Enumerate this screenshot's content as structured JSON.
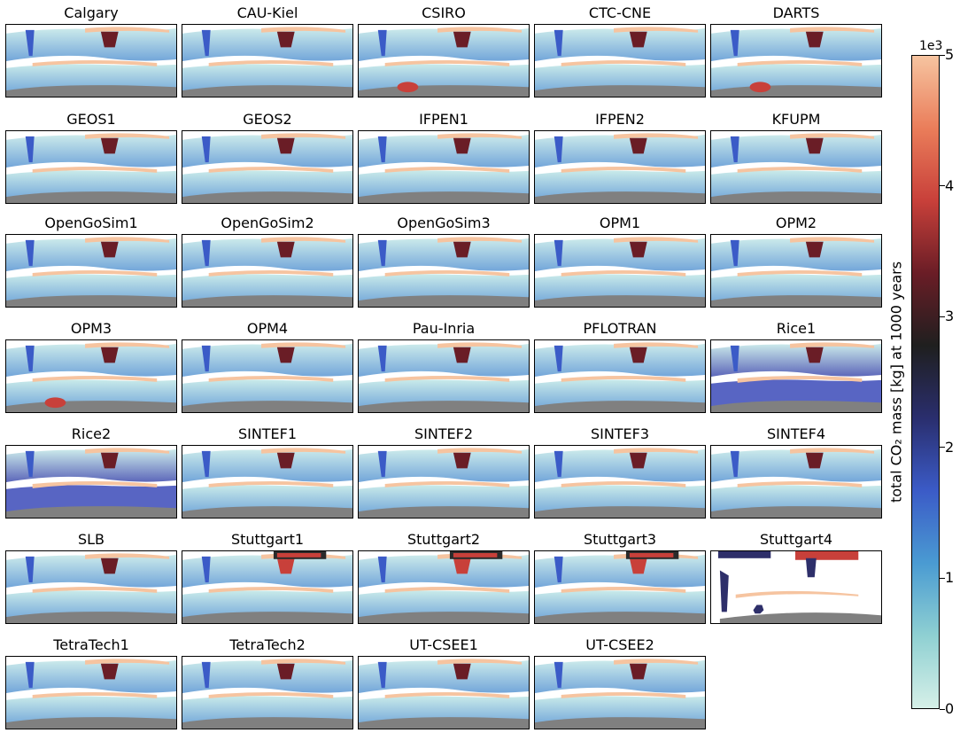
{
  "chart_data": {
    "type": "heatmap",
    "panels": [
      "Calgary",
      "CAU-Kiel",
      "CSIRO",
      "CTC-CNE",
      "DARTS",
      "GEOS1",
      "GEOS2",
      "IFPEN1",
      "IFPEN2",
      "KFUPM",
      "OpenGoSim1",
      "OpenGoSim2",
      "OpenGoSim3",
      "OPM1",
      "OPM2",
      "OPM3",
      "OPM4",
      "Pau-Inria",
      "PFLOTRAN",
      "Rice1",
      "Rice2",
      "SINTEF1",
      "SINTEF2",
      "SINTEF3",
      "SINTEF4",
      "SLB",
      "Stuttgart1",
      "Stuttgart2",
      "Stuttgart3",
      "Stuttgart4",
      "TetraTech1",
      "TetraTech2",
      "UT-CSEE1",
      "UT-CSEE2"
    ],
    "grid": {
      "columns": 5,
      "rows": 7
    },
    "colorbar": {
      "label": "total CO₂ mass [kg] at 1000 years",
      "scale_text": "1e3",
      "ticks": [
        "0",
        "1",
        "2",
        "3",
        "4",
        "5"
      ],
      "tick_values": [
        0,
        1,
        2,
        3,
        4,
        5
      ],
      "range": [
        0,
        5
      ],
      "colors": [
        "#d6f0e8",
        "#8fd0d2",
        "#4a9bd2",
        "#3b5bc7",
        "#2a2e6e",
        "#1f1f1f",
        "#6a1d26",
        "#c8403a",
        "#ea7d5a",
        "#f6c4a0"
      ]
    },
    "variants": {
      "Rice1": "dense",
      "Rice2": "dense",
      "Stuttgart4": "sparse",
      "CSIRO": "darkbottom",
      "DARTS": "darkbottom",
      "OPM3": "darkbottom",
      "Stuttgart1": "hottop",
      "Stuttgart2": "hottop",
      "Stuttgart3": "hottop"
    }
  }
}
